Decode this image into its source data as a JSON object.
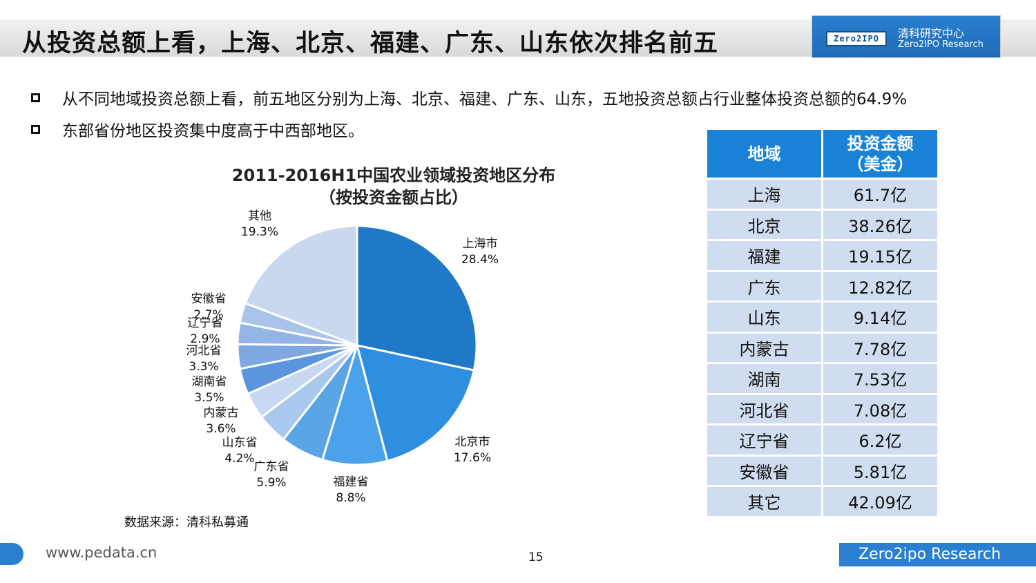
{
  "header": {
    "title": "从投资总额上看，上海、北京、福建、广东、山东依次排名前五",
    "logo_mark": "Zero2IPO",
    "logo_cn": "清科研究中心",
    "logo_en": "Zero2IPO Research"
  },
  "bullets": [
    "从不同地域投资总额上看，前五地区分别为上海、北京、福建、广东、山东，五地投资总额占行业整体投资总额的64.9%",
    "东部省份地区投资集中度高于中西部地区。"
  ],
  "source": "数据来源：清科私募通",
  "table": {
    "headers": [
      "地域",
      "投资金额\n（美金）"
    ],
    "rows": [
      [
        "上海",
        "61.7亿"
      ],
      [
        "北京",
        "38.26亿"
      ],
      [
        "福建",
        "19.15亿"
      ],
      [
        "广东",
        "12.82亿"
      ],
      [
        "山东",
        "9.14亿"
      ],
      [
        "内蒙古",
        "7.78亿"
      ],
      [
        "湖南",
        "7.53亿"
      ],
      [
        "河北省",
        "7.08亿"
      ],
      [
        "辽宁省",
        "6.2亿"
      ],
      [
        "安徽省",
        "5.81亿"
      ],
      [
        "其它",
        "42.09亿"
      ]
    ]
  },
  "footer": {
    "url": "www.pedata.cn",
    "page_number": "15",
    "brand": "Zero2ipo Research"
  },
  "chart_data": {
    "type": "pie",
    "title": "2011-2016H1中国农业领域投资地区分布",
    "subtitle": "（按投资金额占比）",
    "categories": [
      "上海市",
      "北京市",
      "福建省",
      "广东省",
      "山东省",
      "内蒙古",
      "湖南省",
      "河北省",
      "辽宁省",
      "安徽省",
      "其他"
    ],
    "value_labels": [
      "28.4%",
      "17.6%",
      "8.8%",
      "5.9%",
      "4.2%",
      "3.6%",
      "3.5%",
      "3.3%",
      "2.9%",
      "2.7%",
      "19.3%"
    ],
    "values": [
      28.4,
      17.6,
      8.8,
      5.9,
      4.2,
      3.6,
      3.5,
      3.3,
      2.9,
      2.7,
      19.3
    ],
    "colors": [
      "#1f78c8",
      "#2e8ee0",
      "#4aa3ea",
      "#5aa5e6",
      "#a9c8ee",
      "#c6d8f2",
      "#5b95de",
      "#7fa8e3",
      "#93b5e6",
      "#a9c3ea",
      "#c9d7ef"
    ]
  }
}
